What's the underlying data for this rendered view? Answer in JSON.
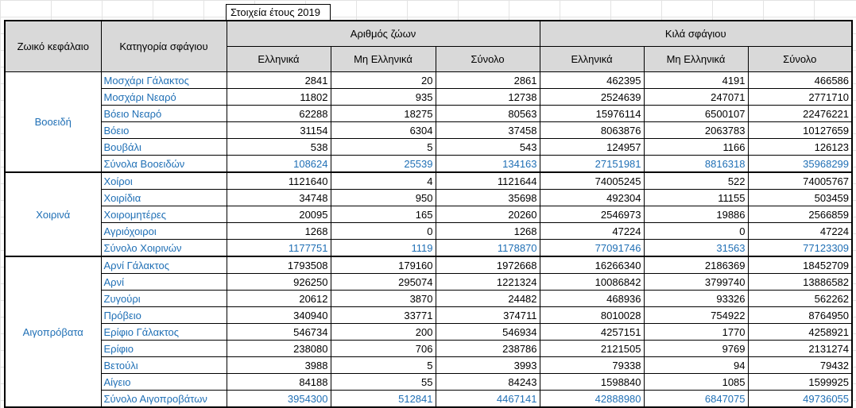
{
  "caption": "Στοιχεία έτους 2019",
  "headers": {
    "capital": "Ζωικό κεφάλαιο",
    "category": "Κατηγορία σφάγιου",
    "group_animals": "Αριθμός ζώων",
    "group_kilos": "Κιλά σφάγιου",
    "sub": [
      "Ελληνικά",
      "Μη Ελληνικά",
      "Σύνολο",
      "Ελληνικά",
      "Μη Ελληνικά",
      "Σύνολο"
    ]
  },
  "groups": [
    {
      "name": "Βοοειδή",
      "rows": [
        {
          "label": "Μοσχάρι Γάλακτος",
          "values": [
            "2841",
            "20",
            "2861",
            "462395",
            "4191",
            "466586"
          ]
        },
        {
          "label": "Μοσχάρι Νεαρό",
          "values": [
            "11802",
            "935",
            "12738",
            "2524639",
            "247071",
            "2771710"
          ]
        },
        {
          "label": "Βόειο Νεαρό",
          "values": [
            "62288",
            "18275",
            "80563",
            "15976114",
            "6500107",
            "22476221"
          ]
        },
        {
          "label": "Βόειο",
          "values": [
            "31154",
            "6304",
            "37458",
            "8063876",
            "2063783",
            "10127659"
          ]
        },
        {
          "label": "Βουβάλι",
          "values": [
            "538",
            "5",
            "543",
            "124957",
            "1166",
            "126123"
          ]
        },
        {
          "label": "Σύνολα Βοοειδών",
          "values": [
            "108624",
            "25539",
            "134163",
            "27151981",
            "8816318",
            "35968299"
          ],
          "total": true
        }
      ]
    },
    {
      "name": "Χοιρινά",
      "rows": [
        {
          "label": "Χοίροι",
          "values": [
            "1121640",
            "4",
            "1121644",
            "74005245",
            "522",
            "74005767"
          ]
        },
        {
          "label": "Χοιρίδια",
          "values": [
            "34748",
            "950",
            "35698",
            "492304",
            "11155",
            "503459"
          ]
        },
        {
          "label": "Χοιρομητέρες",
          "values": [
            "20095",
            "165",
            "20260",
            "2546973",
            "19886",
            "2566859"
          ]
        },
        {
          "label": "Αγριόχοιροι",
          "values": [
            "1268",
            "0",
            "1268",
            "47224",
            "0",
            "47224"
          ]
        },
        {
          "label": "Σύνολο Χοιρινών",
          "values": [
            "1177751",
            "1119",
            "1178870",
            "77091746",
            "31563",
            "77123309"
          ],
          "total": true
        }
      ]
    },
    {
      "name": "Αιγοπρόβατα",
      "rows": [
        {
          "label": "Αρνί Γάλακτος",
          "values": [
            "1793508",
            "179160",
            "1972668",
            "16266340",
            "2186369",
            "18452709"
          ]
        },
        {
          "label": "Αρνί",
          "values": [
            "926250",
            "295074",
            "1221324",
            "10086842",
            "3799740",
            "13886582"
          ]
        },
        {
          "label": "Ζυγούρι",
          "values": [
            "20612",
            "3870",
            "24482",
            "468936",
            "93326",
            "562262"
          ]
        },
        {
          "label": "Πρόβειο",
          "values": [
            "340940",
            "33771",
            "374711",
            "8010028",
            "754922",
            "8764950"
          ]
        },
        {
          "label": "Ερίφιο Γάλακτος",
          "values": [
            "546734",
            "200",
            "546934",
            "4257151",
            "1770",
            "4258921"
          ]
        },
        {
          "label": "Ερίφιο",
          "values": [
            "238080",
            "706",
            "238786",
            "2121505",
            "9769",
            "2131274"
          ]
        },
        {
          "label": "Βετούλι",
          "values": [
            "3988",
            "5",
            "3993",
            "79338",
            "94",
            "79432"
          ]
        },
        {
          "label": "Αίγειο",
          "values": [
            "84188",
            "55",
            "84243",
            "1598840",
            "1085",
            "1599925"
          ]
        },
        {
          "label": "Σύνολο Αιγοπροβάτων",
          "values": [
            "3954300",
            "512841",
            "4467141",
            "42888980",
            "6847075",
            "49736055"
          ],
          "total": true
        }
      ]
    }
  ],
  "colors": {
    "link_blue": "#1f6fb5",
    "header_gray": "#d9d9d9"
  }
}
